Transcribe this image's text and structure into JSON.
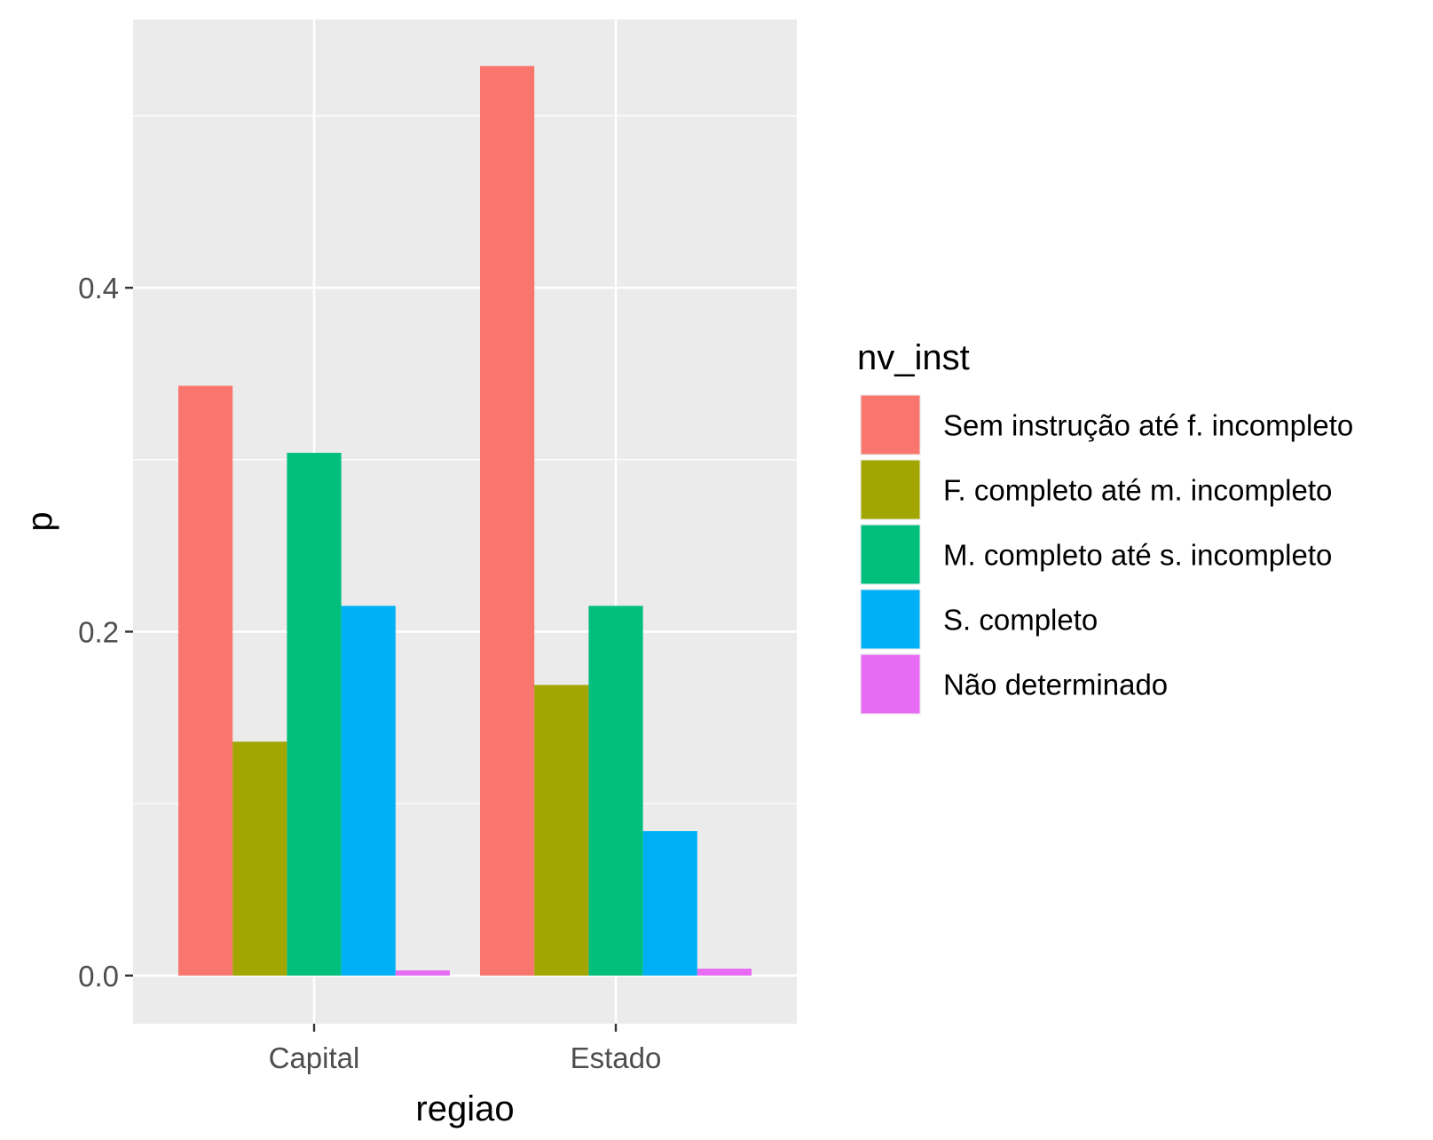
{
  "chart_data": {
    "type": "bar",
    "title": "",
    "xlabel": "regiao",
    "ylabel": "p",
    "categories": [
      "Capital",
      "Estado"
    ],
    "ylim": [
      -0.028,
      0.556
    ],
    "yticks": [
      0.0,
      0.2,
      0.4
    ],
    "ytick_labels": [
      "0.0",
      "0.2",
      "0.4"
    ],
    "grid": true,
    "legend": {
      "title": "nv_inst",
      "placement": "right"
    },
    "series": [
      {
        "name": "Sem instrução até f. incompleto",
        "color": "#F8766D",
        "values": [
          0.343,
          0.529
        ]
      },
      {
        "name": "F. completo até m. incompleto",
        "color": "#A3A500",
        "values": [
          0.136,
          0.169
        ]
      },
      {
        "name": "M. completo até s. incompleto",
        "color": "#00BF7D",
        "values": [
          0.304,
          0.215
        ]
      },
      {
        "name": "S. completo",
        "color": "#00B0F6",
        "values": [
          0.215,
          0.084
        ]
      },
      {
        "name": "Não determinado",
        "color": "#E76BF3",
        "values": [
          0.003,
          0.004
        ]
      }
    ]
  }
}
